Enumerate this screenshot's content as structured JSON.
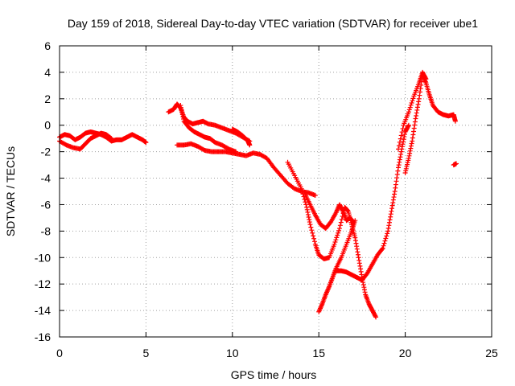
{
  "chart_data": {
    "type": "scatter",
    "title": "Day 159 of 2018, Sidereal Day-to-day VTEC variation (SDTVAR) for receiver ube1",
    "xlabel": "GPS time / hours",
    "ylabel": "SDTVAR / TECUs",
    "xlim": [
      0,
      25
    ],
    "ylim": [
      -16,
      6
    ],
    "x_ticks": [
      "0",
      "5",
      "10",
      "15",
      "20",
      "25"
    ],
    "y_ticks": [
      "6",
      "4",
      "2",
      "0",
      "-2",
      "-4",
      "-6",
      "-8",
      "-10",
      "-12",
      "-14",
      "-16"
    ],
    "grid": true,
    "marker": "plus",
    "color": "#ff0000",
    "series": [
      {
        "points": [
          [
            0,
            -0.9
          ],
          [
            0.3,
            -0.7
          ],
          [
            0.6,
            -0.8
          ],
          [
            0.9,
            -1.1
          ],
          [
            1.2,
            -0.9
          ],
          [
            1.5,
            -0.6
          ],
          [
            1.8,
            -0.5
          ],
          [
            2.1,
            -0.6
          ],
          [
            2.4,
            -0.7
          ],
          [
            2.7,
            -0.9
          ],
          [
            3.0,
            -1.2
          ],
          [
            3.3,
            -1.1
          ],
          [
            3.6,
            -1.1
          ],
          [
            3.9,
            -0.9
          ],
          [
            4.2,
            -0.7
          ],
          [
            4.5,
            -0.9
          ],
          [
            4.8,
            -1.1
          ],
          [
            5.0,
            -1.3
          ]
        ]
      },
      {
        "points": [
          [
            0,
            -1.2
          ],
          [
            0.4,
            -1.5
          ],
          [
            0.8,
            -1.7
          ],
          [
            1.2,
            -1.8
          ],
          [
            1.5,
            -1.4
          ],
          [
            1.8,
            -1.0
          ],
          [
            2.1,
            -0.8
          ],
          [
            2.4,
            -0.6
          ],
          [
            2.7,
            -0.7
          ],
          [
            3.0,
            -1.0
          ]
        ]
      },
      {
        "points": [
          [
            6.3,
            1.0
          ],
          [
            6.6,
            1.2
          ],
          [
            6.8,
            1.6
          ],
          [
            7.0,
            1.3
          ],
          [
            7.2,
            0.6
          ],
          [
            7.4,
            0.3
          ],
          [
            7.7,
            0.1
          ],
          [
            8.0,
            0.2
          ],
          [
            8.3,
            0.3
          ],
          [
            8.6,
            0.1
          ],
          [
            9.0,
            0
          ],
          [
            9.4,
            -0.2
          ],
          [
            9.8,
            -0.4
          ],
          [
            10.2,
            -0.6
          ],
          [
            10.6,
            -0.9
          ],
          [
            11.0,
            -1.2
          ]
        ]
      },
      {
        "points": [
          [
            7.0,
            1.5
          ],
          [
            7.2,
            0.3
          ],
          [
            7.5,
            -0.2
          ],
          [
            7.8,
            -0.5
          ],
          [
            8.1,
            -0.7
          ],
          [
            8.4,
            -0.9
          ],
          [
            8.7,
            -1.0
          ],
          [
            9.0,
            -1.3
          ],
          [
            9.4,
            -1.5
          ],
          [
            9.8,
            -1.8
          ],
          [
            10.2,
            -2.0
          ]
        ]
      },
      {
        "points": [
          [
            6.8,
            -1.5
          ],
          [
            7.2,
            -1.5
          ],
          [
            7.6,
            -1.4
          ],
          [
            8.0,
            -1.6
          ],
          [
            8.4,
            -1.9
          ],
          [
            8.8,
            -2.0
          ],
          [
            9.2,
            -2.0
          ],
          [
            9.6,
            -2.0
          ],
          [
            10.0,
            -2.1
          ],
          [
            10.4,
            -2.2
          ],
          [
            10.8,
            -2.3
          ],
          [
            11.2,
            -2.1
          ],
          [
            11.6,
            -2.2
          ],
          [
            12.0,
            -2.5
          ],
          [
            12.4,
            -3.2
          ],
          [
            12.8,
            -3.8
          ],
          [
            13.2,
            -4.4
          ],
          [
            13.6,
            -4.8
          ],
          [
            14.0,
            -5.0
          ],
          [
            14.4,
            -5.1
          ],
          [
            14.8,
            -5.3
          ]
        ]
      },
      {
        "points": [
          [
            10.0,
            -0.3
          ],
          [
            10.3,
            -0.5
          ],
          [
            10.6,
            -0.8
          ],
          [
            10.9,
            -1.2
          ],
          [
            11.0,
            -1.5
          ]
        ]
      },
      {
        "points": [
          [
            13.2,
            -2.8
          ],
          [
            13.6,
            -3.8
          ],
          [
            14.0,
            -4.8
          ],
          [
            14.3,
            -6.2
          ],
          [
            14.5,
            -7.5
          ],
          [
            14.8,
            -9.0
          ],
          [
            15.0,
            -9.8
          ],
          [
            15.3,
            -10.1
          ],
          [
            15.6,
            -10.0
          ],
          [
            15.9,
            -9.0
          ],
          [
            16.2,
            -7.8
          ],
          [
            16.5,
            -6.2
          ],
          [
            16.7,
            -6.5
          ],
          [
            16.9,
            -7.5
          ],
          [
            17.1,
            -8.5
          ],
          [
            17.3,
            -10.0
          ],
          [
            17.5,
            -11.5
          ],
          [
            17.7,
            -12.8
          ],
          [
            17.9,
            -13.5
          ],
          [
            18.1,
            -14.0
          ],
          [
            18.3,
            -14.5
          ]
        ]
      },
      {
        "points": [
          [
            14.2,
            -5.2
          ],
          [
            14.5,
            -6.0
          ],
          [
            14.8,
            -6.8
          ],
          [
            15.1,
            -7.5
          ],
          [
            15.4,
            -7.8
          ],
          [
            15.7,
            -7.3
          ],
          [
            16.0,
            -6.6
          ],
          [
            16.2,
            -6.0
          ],
          [
            16.4,
            -6.5
          ],
          [
            16.6,
            -7.2
          ],
          [
            16.8,
            -7.0
          ],
          [
            17.0,
            -7.3
          ]
        ]
      },
      {
        "points": [
          [
            15.0,
            -14.1
          ],
          [
            15.2,
            -13.5
          ],
          [
            15.4,
            -12.8
          ],
          [
            15.6,
            -12.2
          ],
          [
            15.8,
            -11.5
          ],
          [
            16.0,
            -10.8
          ],
          [
            16.3,
            -10.0
          ],
          [
            16.6,
            -9.0
          ],
          [
            16.9,
            -8.0
          ],
          [
            17.1,
            -7.2
          ]
        ]
      },
      {
        "points": [
          [
            16.0,
            -11.0
          ],
          [
            16.3,
            -11.0
          ],
          [
            16.6,
            -11.1
          ],
          [
            16.9,
            -11.3
          ],
          [
            17.2,
            -11.5
          ],
          [
            17.5,
            -11.7
          ],
          [
            17.8,
            -11.2
          ],
          [
            18.1,
            -10.5
          ],
          [
            18.4,
            -9.8
          ],
          [
            18.7,
            -9.3
          ],
          [
            19.0,
            -8.0
          ],
          [
            19.2,
            -6.5
          ],
          [
            19.4,
            -5.0
          ],
          [
            19.6,
            -3.2
          ],
          [
            19.8,
            -1.8
          ],
          [
            20.0,
            -0.5
          ],
          [
            20.2,
            0
          ]
        ]
      },
      {
        "points": [
          [
            20.0,
            -3.6
          ],
          [
            20.2,
            -2.5
          ],
          [
            20.4,
            -1.2
          ],
          [
            20.6,
            0.5
          ],
          [
            20.8,
            2.0
          ],
          [
            21.0,
            3.8
          ],
          [
            21.2,
            3.2
          ],
          [
            21.4,
            2.3
          ],
          [
            21.6,
            1.5
          ],
          [
            21.9,
            1.0
          ],
          [
            22.2,
            0.8
          ],
          [
            22.5,
            0.7
          ],
          [
            22.8,
            0.8
          ],
          [
            22.9,
            0.3
          ]
        ]
      },
      {
        "points": [
          [
            19.6,
            -1.8
          ],
          [
            19.9,
            0
          ],
          [
            20.2,
            1.0
          ],
          [
            20.5,
            2.2
          ],
          [
            20.8,
            3.2
          ],
          [
            21.0,
            4.0
          ],
          [
            21.2,
            3.5
          ]
        ]
      },
      {
        "points": [
          [
            22.8,
            -3.0
          ],
          [
            22.95,
            -2.9
          ]
        ]
      }
    ]
  }
}
